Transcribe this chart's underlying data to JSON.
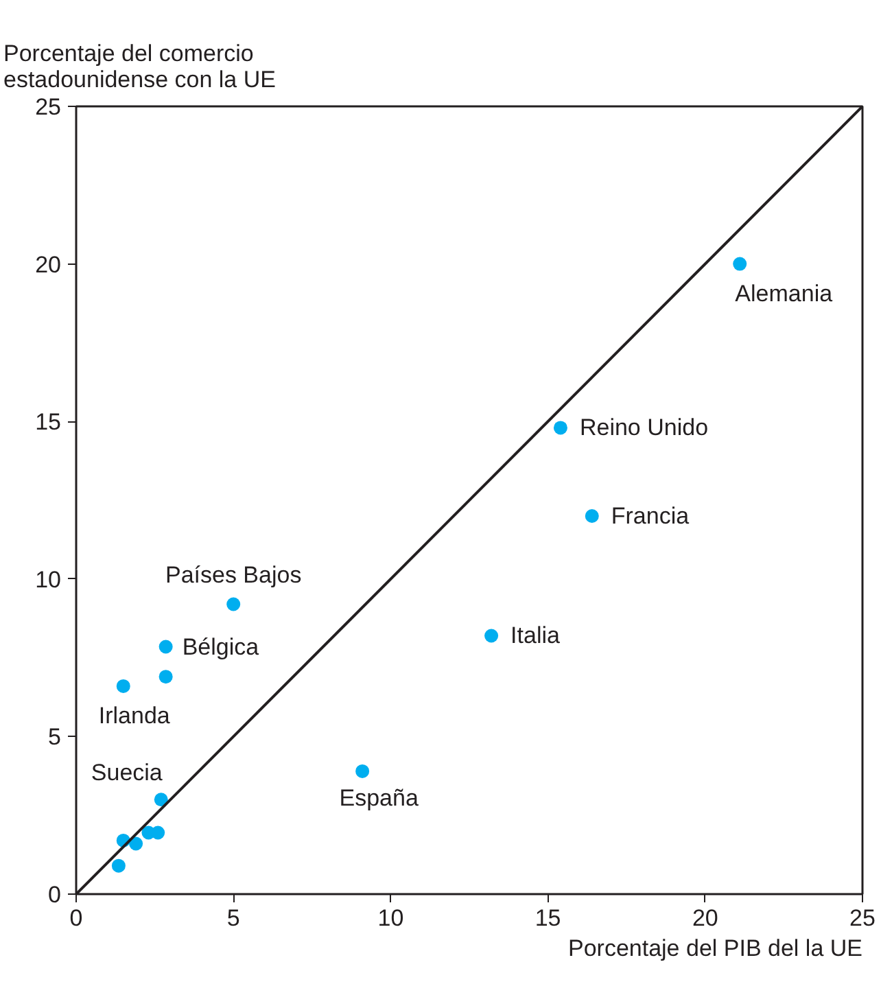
{
  "chart_data": {
    "type": "scatter",
    "ylabel": "Porcentaje del comercio\nestadounidense con la UE",
    "xlabel": "Porcentaje del PIB del la UE",
    "x": [
      21.1,
      15.4,
      16.4,
      13.2,
      9.1,
      5.0,
      2.85,
      2.85,
      1.5,
      2.7,
      1.5,
      1.9,
      2.3,
      2.6,
      1.35
    ],
    "series": [
      {
        "type": "scatter",
        "color": "#00aeef",
        "marker": "circle",
        "values": [
          20.0,
          14.8,
          12.0,
          8.2,
          3.9,
          9.2,
          7.85,
          6.9,
          6.6,
          3.0,
          1.7,
          1.6,
          1.95,
          1.95,
          0.9
        ]
      },
      {
        "type": "line",
        "color": "#231f20",
        "x": [
          0,
          25
        ],
        "values": [
          0,
          25
        ]
      }
    ],
    "annotations": [
      {
        "text": "Alemania",
        "x": 21.1,
        "y": 20.0
      },
      {
        "text": "Reino Unido",
        "x": 15.4,
        "y": 14.8
      },
      {
        "text": "Francia",
        "x": 16.4,
        "y": 12.0
      },
      {
        "text": "Italia",
        "x": 13.2,
        "y": 8.2
      },
      {
        "text": "España",
        "x": 9.1,
        "y": 3.9
      },
      {
        "text": "Países Bajos",
        "x": 5.0,
        "y": 9.2
      },
      {
        "text": "Bélgica",
        "x": 2.85,
        "y": 7.85
      },
      {
        "text": "Irlanda",
        "x": 1.5,
        "y": 6.6
      },
      {
        "text": "Suecia",
        "x": 2.7,
        "y": 3.0
      }
    ],
    "xlim": [
      0,
      25
    ],
    "ylim": [
      0,
      25
    ],
    "xticks": [
      0,
      5,
      10,
      15,
      20,
      25
    ],
    "yticks": [
      0,
      5,
      10,
      15,
      20,
      25
    ],
    "grid": false
  }
}
